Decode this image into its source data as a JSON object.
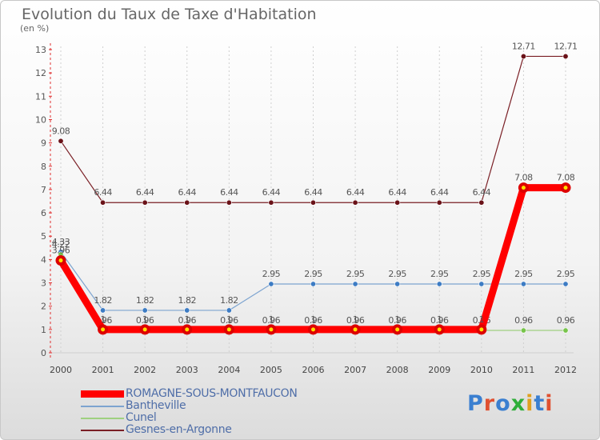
{
  "title": "Evolution du Taux de Taxe d'Habitation",
  "unit_label": "(en %)",
  "logo": {
    "text": "Proxiti",
    "colors": [
      "#3a7fd0",
      "#e05030",
      "#3a7fd0",
      "#2fae3a",
      "#e0a020",
      "#3a7fd0",
      "#e05030"
    ]
  },
  "chart_data": {
    "type": "line",
    "title": "Evolution du Taux de Taxe d'Habitation",
    "ylabel": "(en %)",
    "xlabel": "",
    "categories": [
      "2000",
      "2001",
      "2002",
      "2003",
      "2004",
      "2005",
      "2006",
      "2007",
      "2008",
      "2009",
      "2010",
      "2011",
      "2012"
    ],
    "ylim": [
      0,
      13
    ],
    "yticks": [
      0,
      1,
      2,
      3,
      4,
      5,
      6,
      7,
      8,
      9,
      10,
      11,
      12,
      13
    ],
    "legend_position": "bottom",
    "series": [
      {
        "name": "Gesnes-en-Argonne",
        "color": "#7a1f25",
        "dot": "#6a1218",
        "values": [
          9.08,
          6.44,
          6.44,
          6.44,
          6.44,
          6.44,
          6.44,
          6.44,
          6.44,
          6.44,
          6.44,
          12.71,
          12.71
        ],
        "labels": [
          "9.08",
          "6.44",
          "6.44",
          "6.44",
          "6.44",
          "6.44",
          "6.44",
          "6.44",
          "6.44",
          "6.44",
          "6.44",
          "12.71",
          "12.71"
        ]
      },
      {
        "name": "Bantheville",
        "color": "#7da4d0",
        "dot": "#3d7cc4",
        "values": [
          4.33,
          1.82,
          1.82,
          1.82,
          1.82,
          2.95,
          2.95,
          2.95,
          2.95,
          2.95,
          2.95,
          2.95,
          2.95
        ],
        "labels": [
          "4.33",
          "1.82",
          "1.82",
          "1.82",
          "1.82",
          "2.95",
          "2.95",
          "2.95",
          "2.95",
          "2.95",
          "2.95",
          "2.95",
          "2.95"
        ]
      },
      {
        "name": "Cunel",
        "color": "#9fd080",
        "dot": "#77c44a",
        "values": [
          4.22,
          0.96,
          0.96,
          0.96,
          0.96,
          0.96,
          0.96,
          0.96,
          0.96,
          0.96,
          0.96,
          0.96,
          0.96
        ],
        "labels": [
          "4.22",
          "0.96",
          "0.96",
          "0.96",
          "0.96",
          "0.96",
          "0.96",
          "0.96",
          "0.96",
          "0.96",
          "0.96",
          "0.96",
          "0.96"
        ]
      },
      {
        "name": "ROMAGNE-SOUS-MONTFAUCON",
        "color": "#ff0000",
        "dot": "#dd0000",
        "values": [
          3.96,
          1.0,
          1.0,
          1.0,
          1.0,
          1.0,
          1.0,
          1.0,
          1.0,
          1.0,
          1.0,
          7.08,
          7.08
        ],
        "labels": [
          "3.96",
          "1",
          "1",
          "1",
          "1",
          "1",
          "1",
          "1",
          "1",
          "1",
          "1",
          "7.08",
          "7.08"
        ]
      }
    ],
    "legend_order": [
      "ROMAGNE-SOUS-MONTFAUCON",
      "Bantheville",
      "Cunel",
      "Gesnes-en-Argonne"
    ]
  }
}
